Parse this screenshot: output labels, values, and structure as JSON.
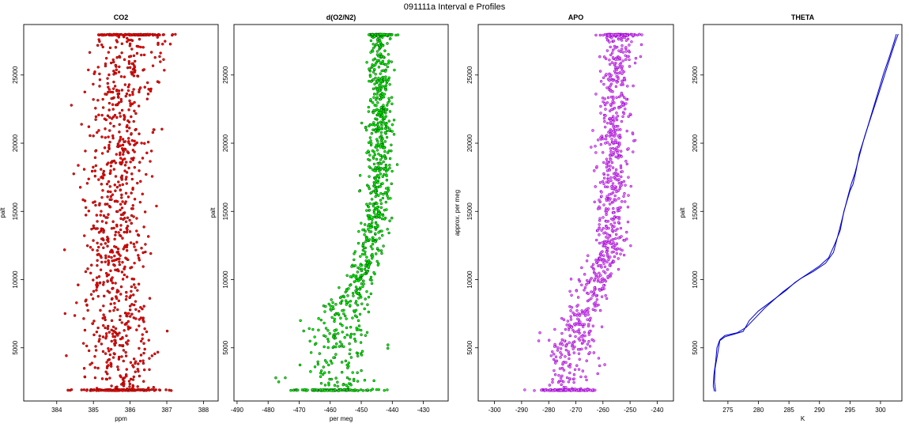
{
  "figure": {
    "title": "091111a   Interval e Profiles"
  },
  "chart_data": [
    {
      "type": "scatter",
      "title": "CO2",
      "xlabel": "ppm",
      "ylabel": "palt",
      "xlim": [
        383.1,
        388.4
      ],
      "ylim": [
        1100,
        28700
      ],
      "xticks": [
        384,
        385,
        386,
        387,
        388
      ],
      "yticks": [
        5000,
        10000,
        15000,
        20000,
        25000
      ],
      "grid": false,
      "colors": {
        "outline": "#8b0000",
        "fill": "#ff0000"
      },
      "profile": {
        "y": [
          1900,
          5000,
          10000,
          15000,
          20000,
          25000,
          28000
        ],
        "center": [
          385.8,
          385.7,
          385.6,
          385.6,
          385.7,
          385.9,
          386.0
        ],
        "spread": [
          0.75,
          0.75,
          0.7,
          0.7,
          0.7,
          0.75,
          0.8
        ]
      },
      "series": [
        {
          "values": "dense scattered points about the profile center (about 1100 samples)"
        }
      ]
    },
    {
      "type": "scatter",
      "title": "d(O2/N2)",
      "xlabel": "per meg",
      "ylabel": "palt",
      "xlim": [
        -491,
        -422
      ],
      "ylim": [
        1100,
        28700
      ],
      "xticks": [
        -490,
        -480,
        -470,
        -460,
        -450,
        -440,
        -430
      ],
      "yticks": [
        5000,
        10000,
        15000,
        20000,
        25000
      ],
      "grid": false,
      "colors": {
        "outline": "#006400",
        "fill": "#00ff00"
      },
      "profile": {
        "y": [
          1900,
          5000,
          7000,
          8500,
          10000,
          12500,
          15000,
          20000,
          25000,
          28000
        ],
        "center": [
          -459,
          -458,
          -457,
          -453,
          -450,
          -447,
          -445,
          -444,
          -444,
          -444
        ],
        "spread": [
          10,
          9,
          8,
          5,
          4,
          3.5,
          3,
          3,
          3,
          3
        ]
      },
      "series": [
        {
          "values": "dense scattered points about the profile center (about 1100 samples)"
        }
      ]
    },
    {
      "type": "scatter",
      "title": "APO",
      "xlabel": "",
      "ylabel": "approx. per meg",
      "xlim": [
        -306,
        -234
      ],
      "ylim": [
        1100,
        28700
      ],
      "xticks": [
        -300,
        -290,
        -280,
        -270,
        -260,
        -250,
        -240
      ],
      "yticks": [
        5000,
        10000,
        15000,
        20000,
        25000
      ],
      "grid": false,
      "colors": {
        "outline": "#9400d3",
        "fill": "#ee82ee"
      },
      "profile": {
        "y": [
          1900,
          5000,
          7500,
          10000,
          12500,
          15000,
          20000,
          25000,
          28000
        ],
        "center": [
          -273,
          -272,
          -268,
          -262,
          -258,
          -257,
          -256,
          -255,
          -254
        ],
        "spread": [
          8,
          7,
          6,
          5,
          4.5,
          4.5,
          4.5,
          4.5,
          4.5
        ]
      },
      "series": [
        {
          "values": "dense scattered points about the profile center (about 1100 samples)"
        }
      ]
    },
    {
      "type": "line",
      "title": "THETA",
      "xlabel": "K",
      "ylabel": "palt",
      "xlim": [
        271,
        303.5
      ],
      "ylim": [
        1100,
        28700
      ],
      "xticks": [
        275,
        280,
        285,
        290,
        295,
        300
      ],
      "yticks": [
        5000,
        10000,
        15000,
        20000,
        25000
      ],
      "grid": false,
      "colors": {
        "line": "#0000cd"
      },
      "series": [
        {
          "x": [
            272.8,
            272.6,
            272.7,
            273.0,
            273.2,
            273.6,
            274.5,
            276.0,
            277.5,
            278.5,
            280.0,
            281.5,
            283.0,
            284.5,
            286.0,
            288.0,
            290.0,
            291.5,
            292.5,
            293.4,
            294.0,
            295.0,
            295.5,
            296.0,
            296.5,
            297.5,
            298.5,
            299.5,
            300.5,
            301.5,
            302.2,
            302.6
          ],
          "y": [
            1800,
            2200,
            3000,
            4000,
            5000,
            5500,
            5800,
            6000,
            6200,
            7000,
            7700,
            8200,
            8700,
            9200,
            9800,
            10400,
            11000,
            11600,
            12600,
            13600,
            15000,
            16500,
            17000,
            18000,
            19200,
            20600,
            22100,
            23600,
            25100,
            26400,
            27400,
            28000
          ]
        },
        {
          "x": [
            273.0,
            272.8,
            272.9,
            273.3,
            273.7,
            274.5,
            276.5,
            278.0,
            279.5,
            281.0,
            282.5,
            284.0,
            285.5,
            287.0,
            289.0,
            291.0,
            292.3,
            293.0,
            293.8,
            294.6,
            295.2,
            295.8,
            296.5,
            297.4,
            298.5,
            299.6,
            300.6,
            301.6,
            302.4,
            302.9
          ],
          "y": [
            1800,
            2500,
            3500,
            4500,
            5600,
            5900,
            6100,
            6500,
            7200,
            7900,
            8500,
            9100,
            9600,
            10100,
            10600,
            11200,
            12000,
            13200,
            14600,
            16000,
            17000,
            17800,
            19000,
            20500,
            22000,
            23500,
            24900,
            26300,
            27400,
            28000
          ]
        }
      ]
    }
  ]
}
